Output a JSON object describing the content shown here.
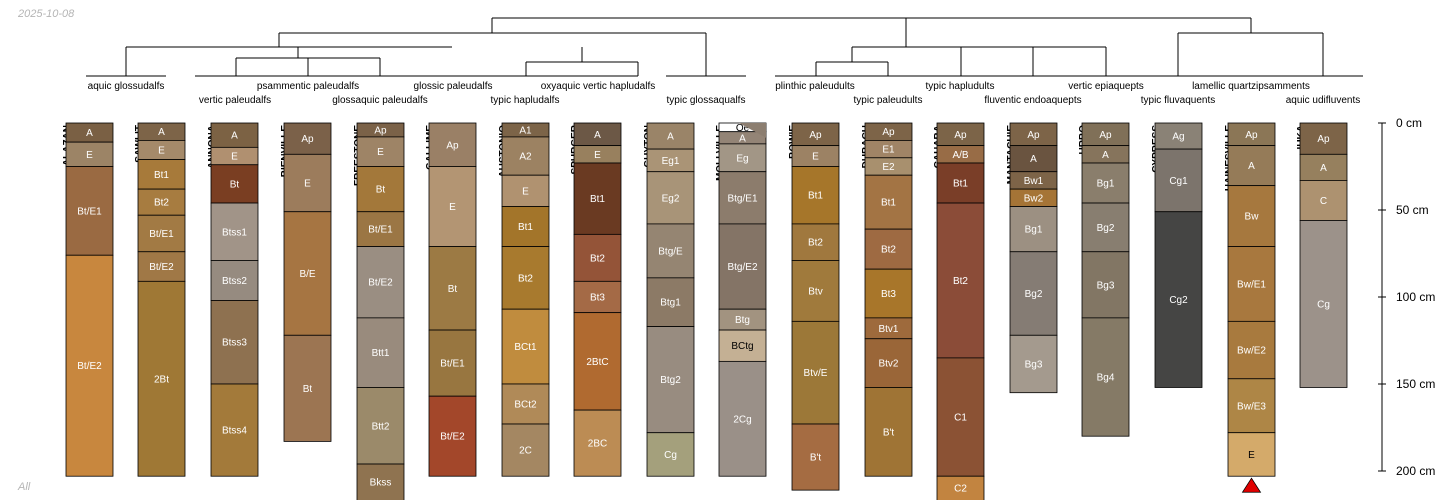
{
  "date_label": "2025-10-08",
  "footer_label": "All",
  "chart_data": {
    "type": "soil-profile-sketch",
    "depth_axis": {
      "unit": "cm",
      "ticks": [
        0,
        50,
        100,
        150,
        200
      ],
      "labels": [
        "0 cm",
        "50 cm",
        "100 cm",
        "150 cm",
        "200 cm"
      ]
    },
    "taxa": [
      "aquic glossudalfs",
      "vertic paleudalfs",
      "psammentic paleudalfs",
      "glossaquic paleudalfs",
      "glossic paleudalfs",
      "typic hapludalfs",
      "oxyaquic vertic hapludalfs",
      "typic glossaqualfs",
      "plinthic paleudults",
      "typic paleudults",
      "typic hapludults",
      "fluventic endoaquepts",
      "vertic epiaquepts",
      "typic fluvaquents",
      "lamellic quartzipsamments",
      "aquic udifluvents"
    ],
    "profiles": [
      {
        "name": "ALAZAN",
        "horizons": [
          {
            "name": "A",
            "top": 0,
            "bottom": 11,
            "color": "#7a6044"
          },
          {
            "name": "E",
            "top": 11,
            "bottom": 25,
            "color": "#9c8466"
          },
          {
            "name": "Bt/E1",
            "top": 25,
            "bottom": 76,
            "color": "#9a6a42"
          },
          {
            "name": "Bt/E2",
            "top": 76,
            "bottom": 203,
            "color": "#c8873e"
          }
        ]
      },
      {
        "name": "SAWLIT",
        "horizons": [
          {
            "name": "A",
            "top": 0,
            "bottom": 10,
            "color": "#7d6448"
          },
          {
            "name": "E",
            "top": 10,
            "bottom": 21,
            "color": "#a58a6a"
          },
          {
            "name": "Bt1",
            "top": 21,
            "bottom": 38,
            "color": "#a77a3a"
          },
          {
            "name": "Bt2",
            "top": 38,
            "bottom": 53,
            "color": "#a77c40"
          },
          {
            "name": "Bt/E1",
            "top": 53,
            "bottom": 74,
            "color": "#a27a44"
          },
          {
            "name": "Bt/E2",
            "top": 74,
            "bottom": 91,
            "color": "#a07846"
          },
          {
            "name": "2Bt",
            "top": 91,
            "bottom": 203,
            "color": "#9f7835"
          }
        ]
      },
      {
        "name": "ANNONA",
        "horizons": [
          {
            "name": "A",
            "top": 0,
            "bottom": 14,
            "color": "#7c6244"
          },
          {
            "name": "E",
            "top": 14,
            "bottom": 24,
            "color": "#b09070"
          },
          {
            "name": "Bt",
            "top": 24,
            "bottom": 46,
            "color": "#7a3e22"
          },
          {
            "name": "Btss1",
            "top": 46,
            "bottom": 79,
            "color": "#a19488"
          },
          {
            "name": "Btss2",
            "top": 79,
            "bottom": 102,
            "color": "#968b80"
          },
          {
            "name": "Btss3",
            "top": 102,
            "bottom": 150,
            "color": "#8e7150"
          },
          {
            "name": "Btss4",
            "top": 150,
            "bottom": 203,
            "color": "#a37a3a"
          }
        ]
      },
      {
        "name": "BIENVILLE",
        "horizons": [
          {
            "name": "Ap",
            "top": 0,
            "bottom": 18,
            "color": "#7b6149"
          },
          {
            "name": "E",
            "top": 18,
            "bottom": 51,
            "color": "#9c7c5c"
          },
          {
            "name": "B/E",
            "top": 51,
            "bottom": 122,
            "color": "#a67542"
          },
          {
            "name": "Bt",
            "top": 122,
            "bottom": 183,
            "color": "#9c7552"
          }
        ]
      },
      {
        "name": "FREESTONE",
        "horizons": [
          {
            "name": "Ap",
            "top": 0,
            "bottom": 8,
            "color": "#7b6248"
          },
          {
            "name": "E",
            "top": 8,
            "bottom": 25,
            "color": "#9e8466"
          },
          {
            "name": "Bt",
            "top": 25,
            "bottom": 51,
            "color": "#a3783a"
          },
          {
            "name": "Bt/E1",
            "top": 51,
            "bottom": 71,
            "color": "#9b7644"
          },
          {
            "name": "Bt/E2",
            "top": 71,
            "bottom": 112,
            "color": "#9a8e82"
          },
          {
            "name": "Btt1",
            "top": 112,
            "bottom": 152,
            "color": "#998b7d"
          },
          {
            "name": "Btt2",
            "top": 152,
            "bottom": 196,
            "color": "#9b8a6a"
          },
          {
            "name": "Bkss",
            "top": 196,
            "bottom": 218,
            "color": "#8f7350"
          }
        ]
      },
      {
        "name": "GALLIME",
        "horizons": [
          {
            "name": "Ap",
            "top": 0,
            "bottom": 25,
            "color": "#9a8066"
          },
          {
            "name": "E",
            "top": 25,
            "bottom": 71,
            "color": "#b39573"
          },
          {
            "name": "Bt",
            "top": 71,
            "bottom": 119,
            "color": "#9c7a44"
          },
          {
            "name": "Bt/E1",
            "top": 119,
            "bottom": 157,
            "color": "#987640"
          },
          {
            "name": "Bt/E2",
            "top": 157,
            "bottom": 203,
            "color": "#a3472a"
          }
        ]
      },
      {
        "name": "AUSTONIO",
        "horizons": [
          {
            "name": "A1",
            "top": 0,
            "bottom": 8,
            "color": "#7c6448"
          },
          {
            "name": "A2",
            "top": 8,
            "bottom": 30,
            "color": "#9c8262"
          },
          {
            "name": "E",
            "top": 30,
            "bottom": 48,
            "color": "#b09270"
          },
          {
            "name": "Bt1",
            "top": 48,
            "bottom": 71,
            "color": "#a3752a"
          },
          {
            "name": "Bt2",
            "top": 71,
            "bottom": 107,
            "color": "#a87a2e"
          },
          {
            "name": "BCt1",
            "top": 107,
            "bottom": 150,
            "color": "#c08c3e"
          },
          {
            "name": "BCt2",
            "top": 150,
            "bottom": 173,
            "color": "#b08a58"
          },
          {
            "name": "2C",
            "top": 173,
            "bottom": 203,
            "color": "#a48762"
          }
        ]
      },
      {
        "name": "SPURGER",
        "horizons": [
          {
            "name": "A",
            "top": 0,
            "bottom": 13,
            "color": "#6c5846"
          },
          {
            "name": "E",
            "top": 13,
            "bottom": 23,
            "color": "#98805e"
          },
          {
            "name": "Bt1",
            "top": 23,
            "bottom": 64,
            "color": "#6a3a22"
          },
          {
            "name": "Bt2",
            "top": 64,
            "bottom": 91,
            "color": "#945438"
          },
          {
            "name": "Bt3",
            "top": 91,
            "bottom": 109,
            "color": "#a46a46"
          },
          {
            "name": "2BtC",
            "top": 109,
            "bottom": 165,
            "color": "#b06a30"
          },
          {
            "name": "2BC",
            "top": 165,
            "bottom": 203,
            "color": "#bc8c54"
          }
        ]
      },
      {
        "name": "GUYTON",
        "horizons": [
          {
            "name": "A",
            "top": 0,
            "bottom": 15,
            "color": "#9a8468"
          },
          {
            "name": "Eg1",
            "top": 15,
            "bottom": 28,
            "color": "#aa9476"
          },
          {
            "name": "Eg2",
            "top": 28,
            "bottom": 58,
            "color": "#a89478"
          },
          {
            "name": "Btg/E",
            "top": 58,
            "bottom": 89,
            "color": "#958572"
          },
          {
            "name": "Btg1",
            "top": 89,
            "bottom": 117,
            "color": "#8c7a66"
          },
          {
            "name": "Btg2",
            "top": 117,
            "bottom": 178,
            "color": "#988c80"
          },
          {
            "name": "Cg",
            "top": 178,
            "bottom": 203,
            "color": "#a4a07c"
          }
        ]
      },
      {
        "name": "MOLLVILLE",
        "horizons": [
          {
            "name": "Oe",
            "top": 0,
            "bottom": 5,
            "color": "#ffffff"
          },
          {
            "name": "A",
            "top": 5,
            "bottom": 12,
            "color": "#938476"
          },
          {
            "name": "Eg",
            "top": 12,
            "bottom": 28,
            "color": "#a29686"
          },
          {
            "name": "Btg/E1",
            "top": 28,
            "bottom": 58,
            "color": "#8c7c6c"
          },
          {
            "name": "Btg/E2",
            "top": 58,
            "bottom": 107,
            "color": "#847466"
          },
          {
            "name": "Btg",
            "top": 107,
            "bottom": 119,
            "color": "#a29380"
          },
          {
            "name": "BCtg",
            "top": 119,
            "bottom": 137,
            "color": "#c4b094"
          },
          {
            "name": "2Cg",
            "top": 137,
            "bottom": 203,
            "color": "#9a9088"
          }
        ]
      },
      {
        "name": "BOWIE",
        "horizons": [
          {
            "name": "Ap",
            "top": 0,
            "bottom": 13,
            "color": "#7d6448"
          },
          {
            "name": "E",
            "top": 13,
            "bottom": 25,
            "color": "#9c8264"
          },
          {
            "name": "Bt1",
            "top": 25,
            "bottom": 58,
            "color": "#a6762a"
          },
          {
            "name": "Bt2",
            "top": 58,
            "bottom": 79,
            "color": "#a0783e"
          },
          {
            "name": "Btv",
            "top": 79,
            "bottom": 114,
            "color": "#a07a3c"
          },
          {
            "name": "Btv/E",
            "top": 114,
            "bottom": 173,
            "color": "#9c7838"
          },
          {
            "name": "B't",
            "top": 173,
            "bottom": 211,
            "color": "#a56c42"
          }
        ]
      },
      {
        "name": "DUBACH",
        "horizons": [
          {
            "name": "Ap",
            "top": 0,
            "bottom": 10,
            "color": "#7d6448"
          },
          {
            "name": "E1",
            "top": 10,
            "bottom": 20,
            "color": "#a08466"
          },
          {
            "name": "E2",
            "top": 20,
            "bottom": 30,
            "color": "#a8906e"
          },
          {
            "name": "Bt1",
            "top": 30,
            "bottom": 61,
            "color": "#a37444"
          },
          {
            "name": "Bt2",
            "top": 61,
            "bottom": 84,
            "color": "#9e6a42"
          },
          {
            "name": "Bt3",
            "top": 84,
            "bottom": 112,
            "color": "#a8762a"
          },
          {
            "name": "Btv1",
            "top": 112,
            "bottom": 124,
            "color": "#9e6a3c"
          },
          {
            "name": "Btv2",
            "top": 124,
            "bottom": 152,
            "color": "#9a6638"
          },
          {
            "name": "B't",
            "top": 152,
            "bottom": 203,
            "color": "#9f7435"
          }
        ]
      },
      {
        "name": "CAHABA",
        "horizons": [
          {
            "name": "Ap",
            "top": 0,
            "bottom": 13,
            "color": "#7c6448"
          },
          {
            "name": "A/B",
            "top": 13,
            "bottom": 23,
            "color": "#986c46"
          },
          {
            "name": "Bt1",
            "top": 23,
            "bottom": 46,
            "color": "#7a3e28"
          },
          {
            "name": "Bt2",
            "top": 46,
            "bottom": 135,
            "color": "#8b4c38"
          },
          {
            "name": "C1",
            "top": 135,
            "bottom": 203,
            "color": "#8b5234"
          },
          {
            "name": "C2",
            "top": 203,
            "bottom": 218,
            "color": "#c28440"
          }
        ]
      },
      {
        "name": "MANTACHIE",
        "horizons": [
          {
            "name": "Ap",
            "top": 0,
            "bottom": 13,
            "color": "#7d6448"
          },
          {
            "name": "A",
            "top": 13,
            "bottom": 28,
            "color": "#6a5440"
          },
          {
            "name": "Bw1",
            "top": 28,
            "bottom": 38,
            "color": "#7d6448"
          },
          {
            "name": "Bw2",
            "top": 38,
            "bottom": 48,
            "color": "#a57436"
          },
          {
            "name": "Bg1",
            "top": 48,
            "bottom": 74,
            "color": "#9c9082"
          },
          {
            "name": "Bg2",
            "top": 74,
            "bottom": 122,
            "color": "#857c74"
          },
          {
            "name": "Bg3",
            "top": 122,
            "bottom": 155,
            "color": "#a49a8e"
          }
        ]
      },
      {
        "name": "URBO",
        "horizons": [
          {
            "name": "Ap",
            "top": 0,
            "bottom": 13,
            "color": "#807058"
          },
          {
            "name": "A",
            "top": 13,
            "bottom": 23,
            "color": "#86745c"
          },
          {
            "name": "Bg1",
            "top": 23,
            "bottom": 46,
            "color": "#8a7e6c"
          },
          {
            "name": "Bg2",
            "top": 46,
            "bottom": 74,
            "color": "#887e70"
          },
          {
            "name": "Bg3",
            "top": 74,
            "bottom": 112,
            "color": "#827664"
          },
          {
            "name": "Bg4",
            "top": 112,
            "bottom": 180,
            "color": "#857a66"
          }
        ]
      },
      {
        "name": "CYPRESS",
        "horizons": [
          {
            "name": "Ag",
            "top": 0,
            "bottom": 15,
            "color": "#8a8276"
          },
          {
            "name": "Cg1",
            "top": 15,
            "bottom": 51,
            "color": "#7c746c"
          },
          {
            "name": "Cg2",
            "top": 51,
            "bottom": 152,
            "color": "#454544"
          }
        ]
      },
      {
        "name": "HAINESVILLE",
        "horizons": [
          {
            "name": "Ap",
            "top": 0,
            "bottom": 13,
            "color": "#8b7656"
          },
          {
            "name": "A",
            "top": 13,
            "bottom": 36,
            "color": "#957b58"
          },
          {
            "name": "Bw",
            "top": 36,
            "bottom": 71,
            "color": "#a6783e"
          },
          {
            "name": "Bw/E1",
            "top": 71,
            "bottom": 114,
            "color": "#a8783e"
          },
          {
            "name": "Bw/E2",
            "top": 114,
            "bottom": 147,
            "color": "#a87a3e"
          },
          {
            "name": "Bw/E3",
            "top": 147,
            "bottom": 178,
            "color": "#ae8646"
          },
          {
            "name": "E",
            "top": 178,
            "bottom": 203,
            "color": "#d4aa6a"
          }
        ]
      },
      {
        "name": "IUKA",
        "horizons": [
          {
            "name": "Ap",
            "top": 0,
            "bottom": 18,
            "color": "#7d6448"
          },
          {
            "name": "A",
            "top": 18,
            "bottom": 33,
            "color": "#96805e"
          },
          {
            "name": "C",
            "top": 33,
            "bottom": 56,
            "color": "#ad9270"
          },
          {
            "name": "Cg",
            "top": 56,
            "bottom": 152,
            "color": "#9c928a"
          }
        ]
      }
    ]
  }
}
